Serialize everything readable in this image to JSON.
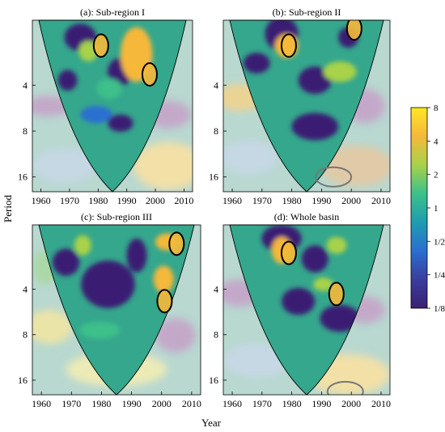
{
  "figure": {
    "ylabel": "Period",
    "xlabel": "Year"
  },
  "colorbar": {
    "ticks": [
      "8",
      "4",
      "2",
      "1",
      "1/2",
      "1/4",
      "1/8"
    ],
    "stops": [
      "#fde725",
      "#f5b83a",
      "#a8d24a",
      "#3cc08a",
      "#1e9db0",
      "#2a6fd0",
      "#3a3d9e",
      "#3a1f73"
    ]
  },
  "chart_data": [
    {
      "type": "heatmap",
      "title": "(a): Sub-region I",
      "x_ticks": [
        "1960",
        "1970",
        "1980",
        "1990",
        "2000",
        "2010"
      ],
      "y_ticks": [
        "4",
        "8",
        "16"
      ],
      "xlim": [
        1957,
        2013
      ],
      "ylim_period": [
        1.5,
        20
      ],
      "y_scale": "log2",
      "significant_regions": [
        {
          "year": 1981,
          "period": 2.2
        },
        {
          "year": 1998,
          "period": 3.4
        }
      ],
      "cone_of_influence": true
    },
    {
      "type": "heatmap",
      "title": "(b): Sub-region II",
      "x_ticks": [
        "1960",
        "1970",
        "1980",
        "1990",
        "2000",
        "2010"
      ],
      "y_ticks": [
        "4",
        "8",
        "16"
      ],
      "xlim": [
        1957,
        2013
      ],
      "ylim_period": [
        1.5,
        20
      ],
      "y_scale": "log2",
      "significant_regions": [
        {
          "year": 1979,
          "period": 2.2
        },
        {
          "year": 2001,
          "period": 1.7
        },
        {
          "year": 1994,
          "period": 16
        }
      ],
      "cone_of_influence": true
    },
    {
      "type": "heatmap",
      "title": "(c): Sub-region III",
      "x_ticks": [
        "1960",
        "1970",
        "1980",
        "1990",
        "2000",
        "2010"
      ],
      "y_ticks": [
        "4",
        "8",
        "16"
      ],
      "xlim": [
        1957,
        2013
      ],
      "ylim_period": [
        1.5,
        20
      ],
      "y_scale": "log2",
      "significant_regions": [
        {
          "year": 2005,
          "period": 2.0
        },
        {
          "year": 2001,
          "period": 4.8
        }
      ],
      "cone_of_influence": true
    },
    {
      "type": "heatmap",
      "title": "(d): Whole basin",
      "x_ticks": [
        "1960",
        "1970",
        "1980",
        "1990",
        "2000",
        "2010"
      ],
      "y_ticks": [
        "4",
        "8",
        "16"
      ],
      "xlim": [
        1957,
        2013
      ],
      "ylim_period": [
        1.5,
        20
      ],
      "y_scale": "log2",
      "significant_regions": [
        {
          "year": 1979,
          "period": 2.3
        },
        {
          "year": 1995,
          "period": 4.3
        },
        {
          "year": 1998,
          "period": 19
        }
      ],
      "cone_of_influence": true
    }
  ]
}
